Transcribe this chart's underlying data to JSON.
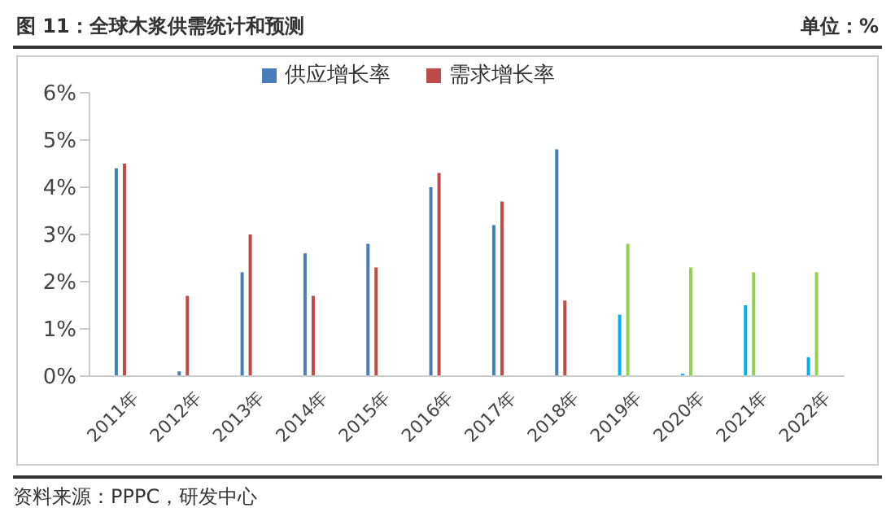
{
  "chart_data": {
    "type": "bar",
    "title": "图 11：全球木浆供需统计和预测",
    "subtitle": "单位：%",
    "categories": [
      "2011年",
      "2012年",
      "2013年",
      "2014年",
      "2015年",
      "2016年",
      "2017年",
      "2018年",
      "2019年",
      "2020年",
      "2021年",
      "2022年"
    ],
    "series": [
      {
        "name": "供应增长率",
        "color": "#4a7ebb",
        "colors": [
          "#4a7ebb",
          "#4a7ebb",
          "#4a7ebb",
          "#4a7ebb",
          "#4a7ebb",
          "#4a7ebb",
          "#4a7ebb",
          "#4a7ebb",
          "#00b0f0",
          "#00b0f0",
          "#00b0f0",
          "#00b0f0"
        ],
        "values": [
          4.4,
          0.1,
          2.2,
          2.6,
          2.8,
          4.0,
          3.2,
          4.8,
          1.3,
          0.05,
          1.5,
          0.4
        ]
      },
      {
        "name": "需求增长率",
        "color": "#be4b48",
        "colors": [
          "#be4b48",
          "#be4b48",
          "#be4b48",
          "#be4b48",
          "#be4b48",
          "#be4b48",
          "#be4b48",
          "#be4b48",
          "#92d050",
          "#92d050",
          "#92d050",
          "#92d050"
        ],
        "values": [
          4.5,
          1.7,
          3.0,
          1.7,
          2.3,
          4.3,
          3.7,
          1.6,
          2.8,
          2.3,
          2.2,
          2.2
        ]
      }
    ],
    "ylim": [
      0,
      6
    ],
    "yticks": [
      {
        "value": 0,
        "label": "0%"
      },
      {
        "value": 1,
        "label": "1%"
      },
      {
        "value": 2,
        "label": "2%"
      },
      {
        "value": 3,
        "label": "3%"
      },
      {
        "value": 4,
        "label": "4%"
      },
      {
        "value": 5,
        "label": "5%"
      },
      {
        "value": 6,
        "label": "6%"
      }
    ],
    "grid": false,
    "legend": "top",
    "annotations": [
      "资料来源：PPPC，研发中心"
    ]
  }
}
